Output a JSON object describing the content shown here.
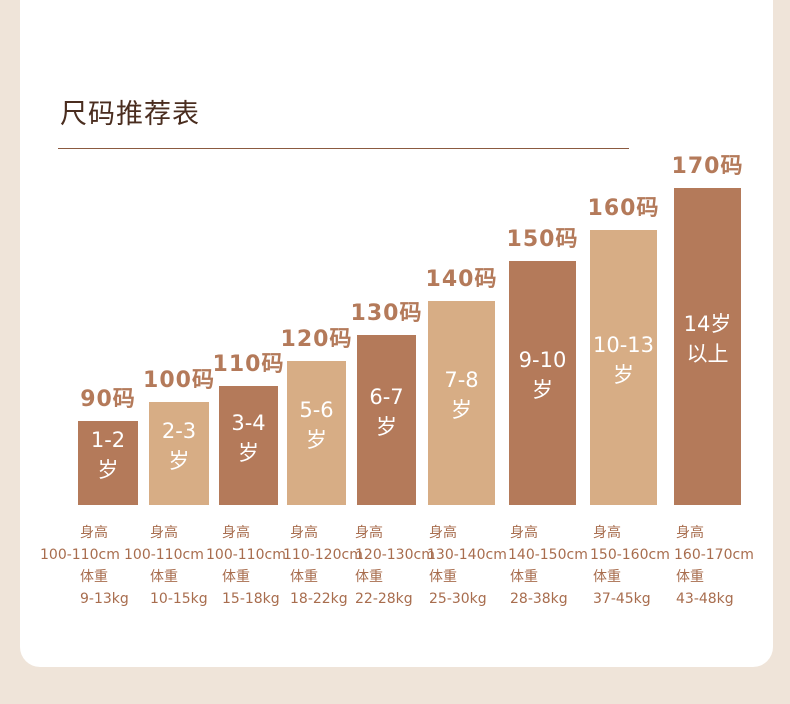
{
  "title": "尺码推荐表",
  "colors": {
    "dark": "#b47a5a",
    "light": "#d7ad85",
    "text": "#a86d4e",
    "title": "#4a2d1f"
  },
  "labels": {
    "height": "身高",
    "weight": "体重"
  },
  "chart_data": {
    "type": "bar",
    "title": "尺码推荐表",
    "categories": [
      "90码",
      "100码",
      "110码",
      "120码",
      "130码",
      "140码",
      "150码",
      "160码",
      "170码"
    ],
    "bar_text": [
      "1-2\n岁",
      "2-3\n岁",
      "3-4\n岁",
      "5-6\n岁",
      "6-7\n岁",
      "7-8\n岁",
      "9-10\n岁",
      "10-13\n岁",
      "14岁\n以上"
    ],
    "heights_cm": [
      "100-110cm",
      "100-110cm",
      "100-110cm",
      "110-120cm",
      "120-130cm",
      "130-140cm",
      "140-150cm",
      "150-160cm",
      "160-170cm"
    ],
    "weights_kg": [
      "9-13kg",
      "10-15kg",
      "15-18kg",
      "18-22kg",
      "22-28kg",
      "25-30kg",
      "28-38kg",
      "37-45kg",
      "43-48kg"
    ],
    "values": [
      90,
      100,
      110,
      120,
      130,
      140,
      150,
      160,
      170
    ],
    "tones": [
      "dark",
      "light",
      "dark",
      "light",
      "dark",
      "light",
      "dark",
      "light",
      "dark"
    ]
  }
}
